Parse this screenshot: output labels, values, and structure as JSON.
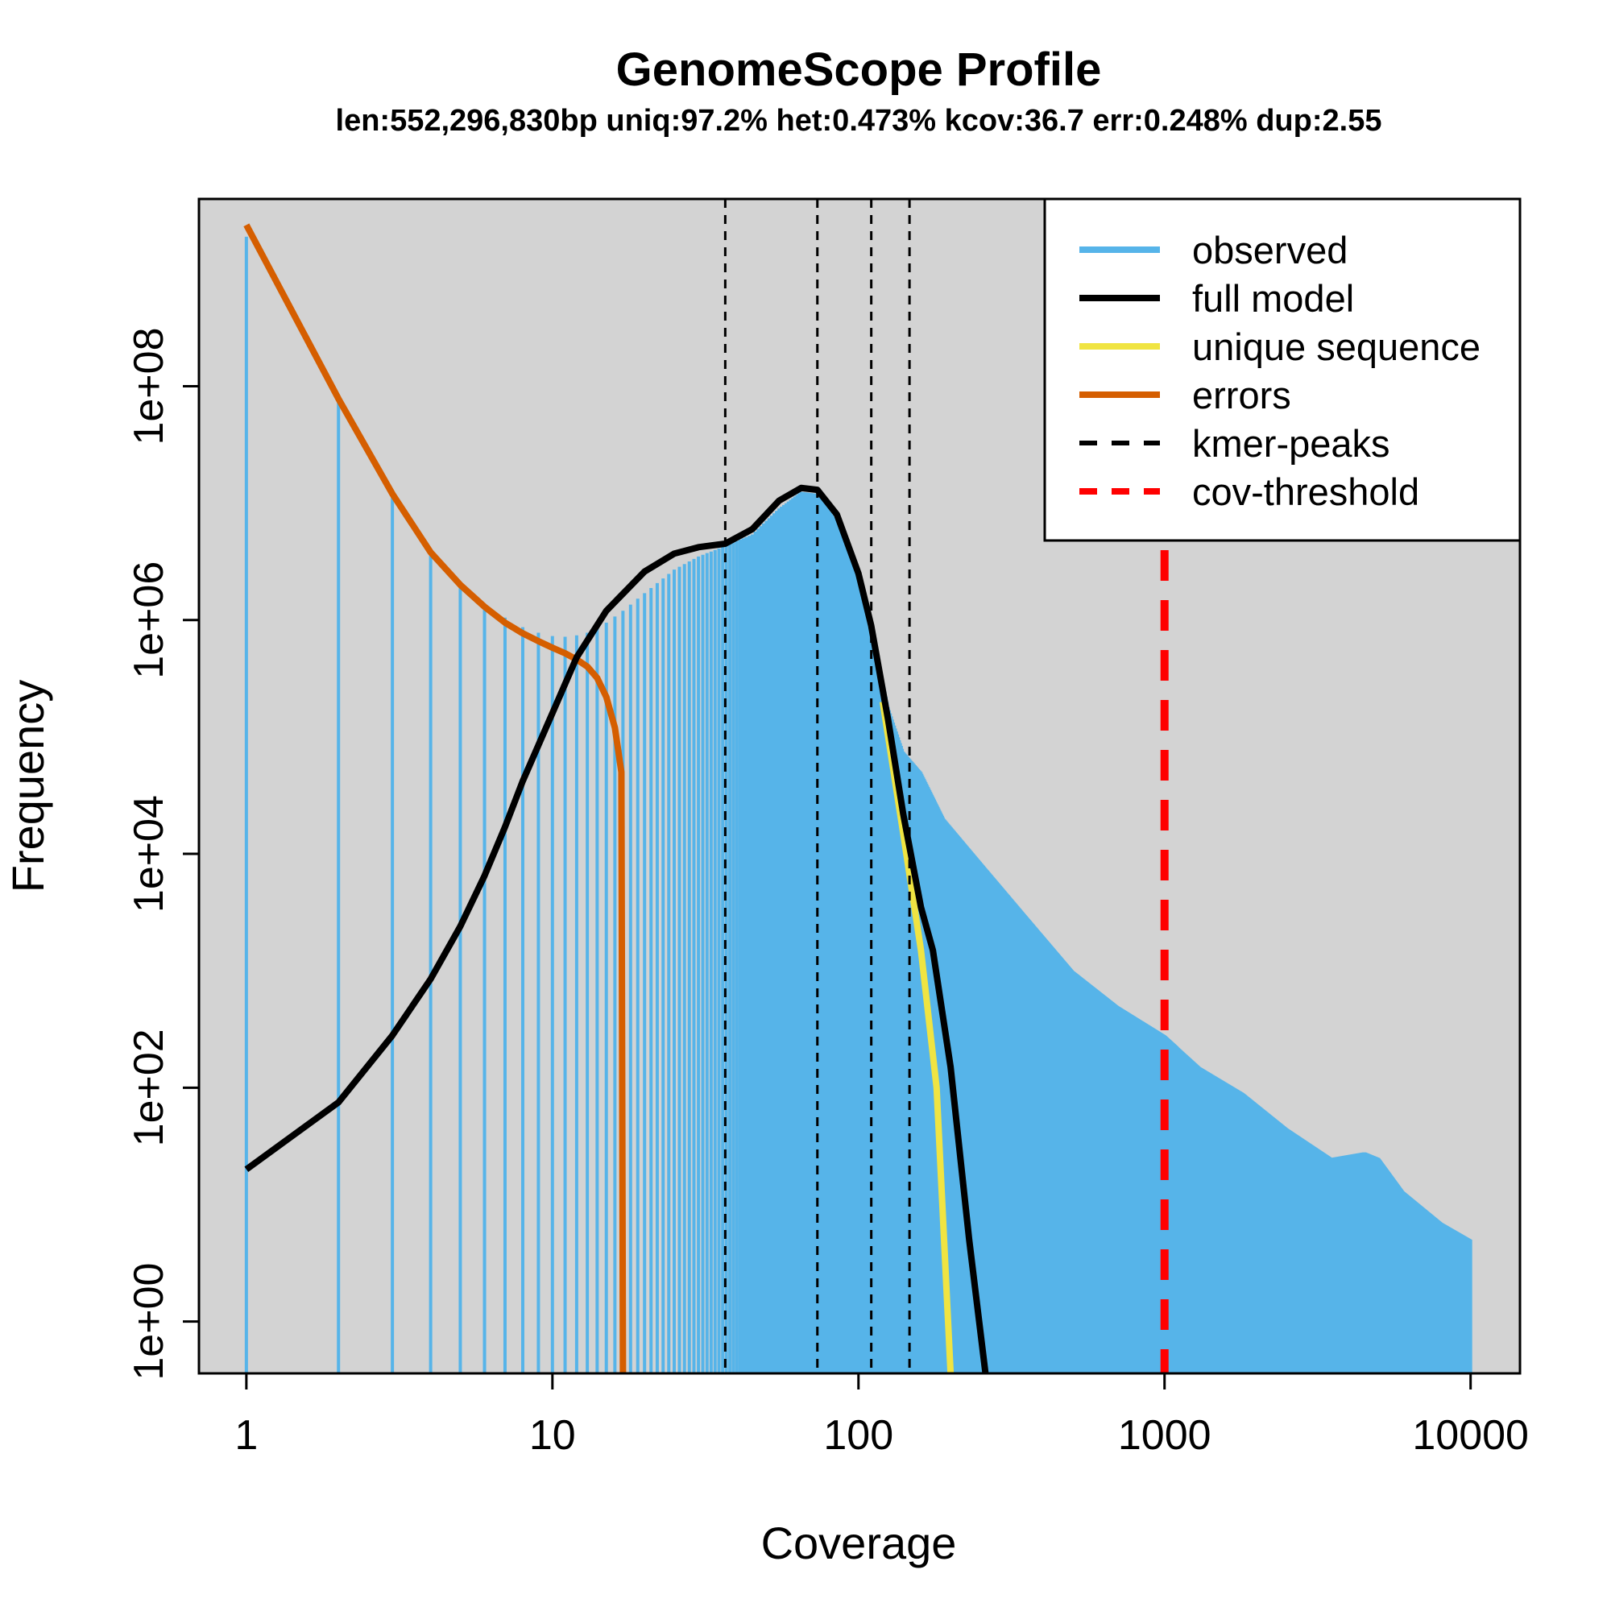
{
  "chart_data": {
    "type": "line",
    "title": "GenomeScope Profile",
    "subtitle": "len:552,296,830bp uniq:97.2% het:0.473% kcov:36.7 err:0.248% dup:2.55",
    "xlabel": "Coverage",
    "ylabel": "Frequency",
    "x_scale": "log",
    "y_scale": "log",
    "xlim": [
      0.7,
      14500
    ],
    "ylim": [
      0.36,
      4000000000
    ],
    "x_ticks": [
      1,
      10,
      100,
      1000,
      10000
    ],
    "x_tick_labels": [
      "1",
      "10",
      "100",
      "1000",
      "10000"
    ],
    "y_ticks": [
      1,
      100,
      10000,
      1000000,
      100000000
    ],
    "y_tick_labels": [
      "1e+00",
      "1e+02",
      "1e+04",
      "1e+06",
      "1e+08"
    ],
    "grid": false,
    "legend_position": "top-right",
    "background_color": "#d3d3d3",
    "observed": {
      "name": "observed",
      "color": "#56b4e9",
      "points": [
        [
          1,
          1900000000
        ],
        [
          2,
          78000000
        ],
        [
          3,
          12000000
        ],
        [
          4,
          3800000
        ],
        [
          5,
          2000000
        ],
        [
          6,
          1350000
        ],
        [
          7,
          1050000
        ],
        [
          8,
          870000
        ],
        [
          9,
          780000
        ],
        [
          10,
          730000
        ],
        [
          11,
          720000
        ],
        [
          12,
          740000
        ],
        [
          13,
          780000
        ],
        [
          14,
          850000
        ],
        [
          15,
          950000
        ],
        [
          17,
          1200000
        ],
        [
          20,
          1700000
        ],
        [
          25,
          2700000
        ],
        [
          30,
          3500000
        ],
        [
          36.7,
          4300000
        ],
        [
          45,
          5400000
        ],
        [
          55,
          9000000
        ],
        [
          65,
          12500000
        ],
        [
          73.4,
          12000000
        ],
        [
          85,
          7000000
        ],
        [
          100,
          2200000
        ],
        [
          110,
          900000
        ],
        [
          125,
          180000
        ],
        [
          140,
          75000
        ],
        [
          160,
          50000
        ],
        [
          190,
          20000
        ],
        [
          250,
          8500
        ],
        [
          350,
          3000
        ],
        [
          500,
          1000
        ],
        [
          700,
          500
        ],
        [
          1000,
          280
        ],
        [
          1300,
          150
        ],
        [
          1800,
          90
        ],
        [
          2500,
          45
        ],
        [
          3500,
          25
        ],
        [
          4500,
          28
        ],
        [
          5000,
          25
        ],
        [
          6000,
          13
        ],
        [
          8000,
          7
        ],
        [
          10000,
          5
        ]
      ]
    },
    "full_model": {
      "name": "full model",
      "color": "#000000",
      "points": [
        [
          1,
          20
        ],
        [
          2,
          75
        ],
        [
          3,
          280
        ],
        [
          4,
          850
        ],
        [
          5,
          2400
        ],
        [
          6,
          6500
        ],
        [
          7,
          17000
        ],
        [
          8,
          42000
        ],
        [
          10,
          160000
        ],
        [
          12,
          480000
        ],
        [
          15,
          1200000
        ],
        [
          20,
          2600000
        ],
        [
          25,
          3700000
        ],
        [
          30,
          4200000
        ],
        [
          36.7,
          4500000
        ],
        [
          45,
          6000000
        ],
        [
          55,
          10500000
        ],
        [
          65,
          13500000
        ],
        [
          73.4,
          13000000
        ],
        [
          85,
          8000000
        ],
        [
          100,
          2500000
        ],
        [
          110,
          900000
        ],
        [
          125,
          140000
        ],
        [
          140,
          22000
        ],
        [
          160,
          3500
        ],
        [
          175,
          1500
        ],
        [
          200,
          150
        ],
        [
          230,
          5
        ],
        [
          260,
          0.3
        ]
      ]
    },
    "unique_sequence": {
      "name": "unique sequence",
      "color": "#f0e442",
      "points": [
        [
          120,
          200000
        ],
        [
          140,
          15000
        ],
        [
          160,
          1500
        ],
        [
          180,
          100
        ],
        [
          200,
          0.3
        ]
      ]
    },
    "errors": {
      "name": "errors",
      "color": "#d55e00",
      "points": [
        [
          1,
          2400000000
        ],
        [
          2,
          78000000
        ],
        [
          3,
          12000000
        ],
        [
          4,
          3800000
        ],
        [
          5,
          2000000
        ],
        [
          6,
          1300000
        ],
        [
          7,
          950000
        ],
        [
          8,
          770000
        ],
        [
          9,
          660000
        ],
        [
          10,
          580000
        ],
        [
          11,
          520000
        ],
        [
          12,
          460000
        ],
        [
          13,
          400000
        ],
        [
          14,
          320000
        ],
        [
          15,
          220000
        ],
        [
          16,
          120000
        ],
        [
          16.8,
          50000
        ],
        [
          17,
          0.3
        ]
      ]
    },
    "kmer_peaks": {
      "name": "kmer-peaks",
      "color": "#000000",
      "x": [
        36.7,
        73.4,
        110.1,
        146.8
      ]
    },
    "cov_threshold": {
      "name": "cov-threshold",
      "color": "#ff0000",
      "x": 1000
    },
    "legend": [
      {
        "label": "observed",
        "color": "#56b4e9",
        "style": "solid"
      },
      {
        "label": "full model",
        "color": "#000000",
        "style": "solid"
      },
      {
        "label": "unique sequence",
        "color": "#f0e442",
        "style": "solid"
      },
      {
        "label": "errors",
        "color": "#d55e00",
        "style": "solid"
      },
      {
        "label": "kmer-peaks",
        "color": "#000000",
        "style": "dashed"
      },
      {
        "label": "cov-threshold",
        "color": "#ff0000",
        "style": "dashed"
      }
    ]
  }
}
